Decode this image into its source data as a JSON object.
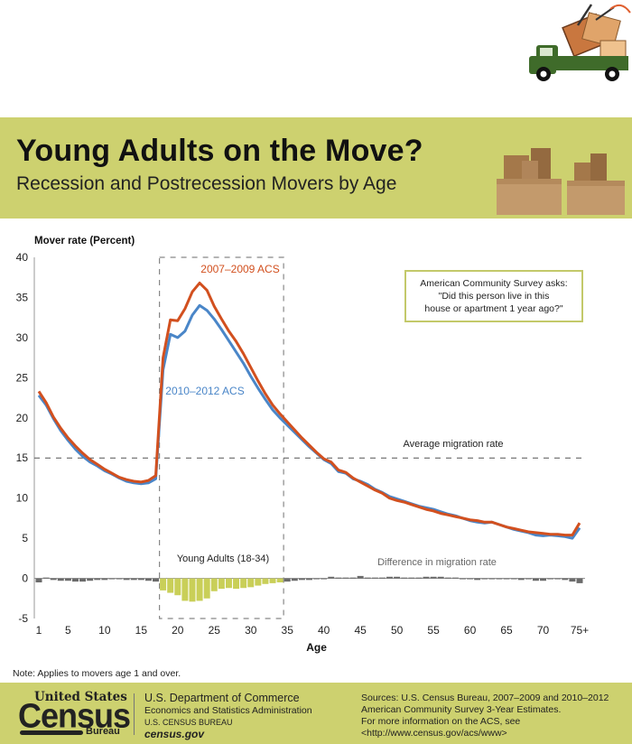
{
  "header": {
    "title": "Young Adults on the Move?",
    "subtitle": "Recession and Postrecession Movers by Age"
  },
  "callout": {
    "line1": "American Community Survey asks:",
    "line2": "\"Did this person live in this",
    "line3": "house or apartment 1 year ago?\""
  },
  "note": "Note: Applies to movers age 1 and over.",
  "footer": {
    "logo_top": "United States",
    "logo_main": "Census",
    "logo_bottom": "Bureau",
    "dept_line1": "U.S. Department of Commerce",
    "dept_line2": "Economics and Statistics Administration",
    "dept_line3": "U.S. CENSUS BUREAU",
    "dept_line4": "census.gov",
    "sources_line1": "Sources:  U.S. Census Bureau, 2007–2009 and 2010–2012",
    "sources_line2": "American Community Survey 3-Year Estimates.",
    "sources_line3": "For more information on the ACS, see",
    "sources_line4": "<http://www.census.gov/acs/www>"
  },
  "colors": {
    "banner": "#cdd16f",
    "series_2007": "#d2501f",
    "series_2010": "#4a86c8",
    "diff_young": "#c9cf58",
    "diff_other": "#6b6b6b",
    "callout_border": "#c3c96a"
  },
  "chart_data": {
    "type": "line",
    "title": "Young Adults on the Move?",
    "subtitle": "Recession and Postrecession Movers by Age",
    "ylabel": "Mover rate (Percent)",
    "xlabel": "Age",
    "ylim": [
      -5,
      40
    ],
    "yticks": [
      -5,
      0,
      5,
      10,
      15,
      20,
      25,
      30,
      35,
      40
    ],
    "xtick_labels": [
      "1",
      "5",
      "10",
      "15",
      "20",
      "25",
      "30",
      "35",
      "40",
      "45",
      "50",
      "55",
      "60",
      "65",
      "70",
      "75+"
    ],
    "xtick_ages": [
      1,
      5,
      10,
      15,
      20,
      25,
      30,
      35,
      40,
      45,
      50,
      55,
      60,
      65,
      70,
      75
    ],
    "grid": false,
    "x": [
      1,
      2,
      3,
      4,
      5,
      6,
      7,
      8,
      9,
      10,
      11,
      12,
      13,
      14,
      15,
      16,
      17,
      18,
      19,
      20,
      21,
      22,
      23,
      24,
      25,
      26,
      27,
      28,
      29,
      30,
      31,
      32,
      33,
      34,
      35,
      36,
      37,
      38,
      39,
      40,
      41,
      42,
      43,
      44,
      45,
      46,
      47,
      48,
      49,
      50,
      51,
      52,
      53,
      54,
      55,
      56,
      57,
      58,
      59,
      60,
      61,
      62,
      63,
      64,
      65,
      66,
      67,
      68,
      69,
      70,
      71,
      72,
      73,
      74,
      75
    ],
    "series": [
      {
        "name": "2007–2009 ACS",
        "values": [
          23.3,
          21.9,
          20.1,
          18.7,
          17.5,
          16.5,
          15.6,
          14.8,
          14.2,
          13.6,
          13.1,
          12.6,
          12.3,
          12.1,
          12.0,
          12.2,
          12.8,
          27.5,
          32.2,
          32.1,
          33.6,
          35.7,
          36.8,
          35.9,
          33.9,
          32.3,
          30.8,
          29.5,
          28.0,
          26.3,
          24.6,
          23.0,
          21.6,
          20.5,
          19.5,
          18.5,
          17.5,
          16.6,
          15.7,
          14.9,
          14.5,
          13.5,
          13.2,
          12.5,
          12.0,
          11.5,
          11.0,
          10.6,
          10.0,
          9.7,
          9.5,
          9.2,
          8.9,
          8.6,
          8.4,
          8.1,
          7.9,
          7.7,
          7.5,
          7.3,
          7.2,
          7.0,
          7.0,
          6.7,
          6.4,
          6.2,
          6.0,
          5.8,
          5.7,
          5.6,
          5.5,
          5.5,
          5.4,
          5.4,
          6.9
        ]
      },
      {
        "name": "2010–2012 ACS",
        "values": [
          22.8,
          21.6,
          19.9,
          18.4,
          17.2,
          16.1,
          15.2,
          14.5,
          14.0,
          13.4,
          13.0,
          12.5,
          12.1,
          11.9,
          11.8,
          11.9,
          12.4,
          26.0,
          30.4,
          30.0,
          30.8,
          32.8,
          34.0,
          33.4,
          32.3,
          31.0,
          29.6,
          28.2,
          26.8,
          25.2,
          23.7,
          22.3,
          21.0,
          20.0,
          19.1,
          18.2,
          17.3,
          16.4,
          15.6,
          14.8,
          14.3,
          13.3,
          13.1,
          12.4,
          12.1,
          11.7,
          11.1,
          10.7,
          10.2,
          9.9,
          9.6,
          9.3,
          9.0,
          8.8,
          8.6,
          8.3,
          8.0,
          7.8,
          7.5,
          7.2,
          7.0,
          6.9,
          7.0,
          6.7,
          6.4,
          6.1,
          5.9,
          5.7,
          5.4,
          5.3,
          5.4,
          5.3,
          5.2,
          5.0,
          6.3
        ]
      },
      {
        "name": "Difference in migration rate",
        "type": "bar",
        "values": [
          -0.5,
          0.1,
          -0.2,
          -0.3,
          -0.3,
          -0.4,
          -0.4,
          -0.3,
          -0.2,
          -0.2,
          -0.1,
          -0.1,
          -0.2,
          -0.2,
          -0.2,
          -0.3,
          -0.4,
          -1.5,
          -1.8,
          -2.1,
          -2.8,
          -2.9,
          -2.8,
          -2.5,
          -1.6,
          -1.3,
          -1.2,
          -1.3,
          -1.2,
          -1.1,
          -0.9,
          -0.7,
          -0.6,
          -0.5,
          -0.4,
          -0.3,
          -0.2,
          -0.2,
          -0.1,
          -0.1,
          0.2,
          0.1,
          0.1,
          0.1,
          0.3,
          0.1,
          0.1,
          0.1,
          0.2,
          0.2,
          0.1,
          0.1,
          0.1,
          0.2,
          0.2,
          0.2,
          0.1,
          0.1,
          0.0,
          -0.1,
          -0.2,
          -0.1,
          0.0,
          0.0,
          0.0,
          -0.1,
          -0.2,
          -0.1,
          -0.3,
          -0.3,
          -0.1,
          -0.1,
          -0.2,
          -0.4,
          -0.6
        ]
      }
    ],
    "reference_line": {
      "label": "Average migration rate",
      "value": 15
    },
    "highlight_region": {
      "label": "Young Adults (18-34)",
      "from": 18,
      "to": 34
    },
    "series_labels": {
      "s2007": "2007–2009 ACS",
      "s2010": "2010–2012 ACS",
      "avg": "Average migration rate",
      "diff": "Difference in migration rate",
      "young": "Young Adults (18-34)"
    }
  }
}
